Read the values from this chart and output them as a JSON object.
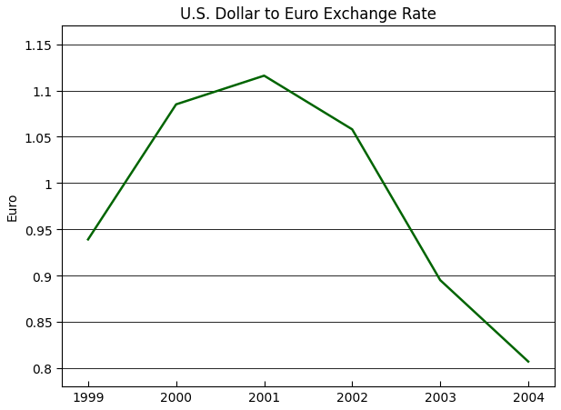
{
  "title": "U.S. Dollar to Euro Exchange Rate",
  "xlabel": "",
  "ylabel": "Euro",
  "x_values": [
    1999,
    2000,
    2001,
    2002,
    2003,
    2004
  ],
  "y_values": [
    0.939,
    1.085,
    1.116,
    1.058,
    0.895,
    0.807
  ],
  "line_color": "#006400",
  "line_width": 1.8,
  "ylim": [
    0.78,
    1.17
  ],
  "xlim": [
    1998.7,
    2004.3
  ],
  "yticks": [
    0.8,
    0.85,
    0.9,
    0.95,
    1.0,
    1.05,
    1.1,
    1.15
  ],
  "xticks": [
    1999,
    2000,
    2001,
    2002,
    2003,
    2004
  ],
  "background_color": "#ffffff",
  "grid_color": "#000000",
  "title_fontsize": 12,
  "label_fontsize": 10,
  "tick_fontsize": 10
}
